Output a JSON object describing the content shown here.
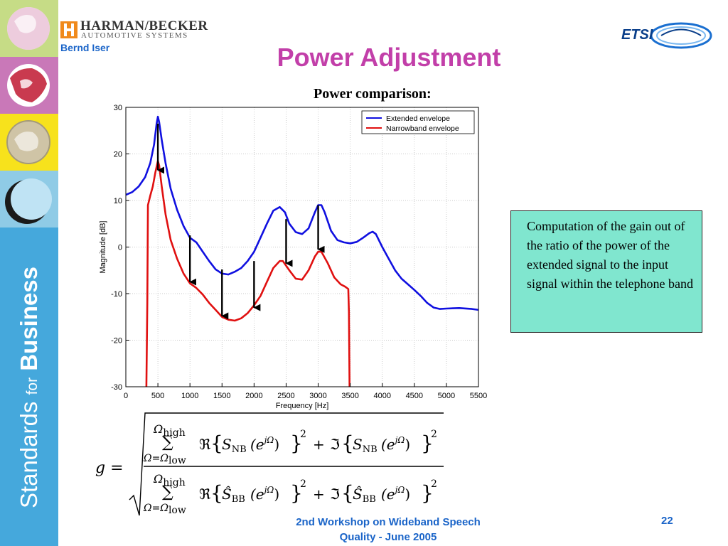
{
  "header": {
    "logo_main": "HARMAN/BECKER",
    "logo_sub": "AUTOMOTIVE SYSTEMS",
    "author": "Bernd Iser",
    "etsi_logo": "ETSI"
  },
  "title": "Power Adjustment",
  "sidebar": {
    "tagline_1": "Standards",
    "tagline_2": "for",
    "tagline_3": "Business"
  },
  "chart_caption": "Power comparison:",
  "chart_data": {
    "type": "line",
    "title": "",
    "xlabel": "Frequency [Hz]",
    "ylabel": "Magnitude [dB]",
    "xlim": [
      0,
      5500
    ],
    "ylim": [
      -30,
      30
    ],
    "x_ticks": [
      0,
      500,
      1000,
      1500,
      2000,
      2500,
      3000,
      3500,
      4000,
      4500,
      5000,
      5500
    ],
    "y_ticks": [
      -30,
      -20,
      -10,
      0,
      10,
      20,
      30
    ],
    "grid": true,
    "legend_position": "top-right",
    "series": [
      {
        "name": "Extended envelope",
        "color": "#1010e0",
        "points": [
          [
            0,
            11.2
          ],
          [
            100,
            11.8
          ],
          [
            200,
            13
          ],
          [
            300,
            15
          ],
          [
            380,
            18
          ],
          [
            440,
            22
          ],
          [
            480,
            26.5
          ],
          [
            500,
            28
          ],
          [
            520,
            26.8
          ],
          [
            560,
            23
          ],
          [
            620,
            18
          ],
          [
            700,
            12.5
          ],
          [
            800,
            8
          ],
          [
            900,
            4.5
          ],
          [
            1000,
            2
          ],
          [
            1100,
            1
          ],
          [
            1200,
            -1
          ],
          [
            1300,
            -3
          ],
          [
            1400,
            -4.8
          ],
          [
            1500,
            -5.7
          ],
          [
            1600,
            -5.9
          ],
          [
            1700,
            -5.3
          ],
          [
            1800,
            -4.5
          ],
          [
            1900,
            -3
          ],
          [
            2000,
            -1
          ],
          [
            2100,
            2
          ],
          [
            2200,
            5
          ],
          [
            2300,
            7.8
          ],
          [
            2400,
            8.6
          ],
          [
            2480,
            7.5
          ],
          [
            2550,
            5
          ],
          [
            2650,
            3.2
          ],
          [
            2750,
            2.8
          ],
          [
            2850,
            4
          ],
          [
            2950,
            7.5
          ],
          [
            3000,
            9
          ],
          [
            3050,
            9
          ],
          [
            3100,
            7.5
          ],
          [
            3200,
            3.5
          ],
          [
            3300,
            1.5
          ],
          [
            3400,
            1
          ],
          [
            3500,
            0.8
          ],
          [
            3600,
            1.1
          ],
          [
            3700,
            2
          ],
          [
            3800,
            3
          ],
          [
            3850,
            3.3
          ],
          [
            3900,
            2.8
          ],
          [
            4000,
            0
          ],
          [
            4100,
            -2.5
          ],
          [
            4200,
            -5
          ],
          [
            4300,
            -6.8
          ],
          [
            4400,
            -8
          ],
          [
            4500,
            -9.2
          ],
          [
            4600,
            -10.5
          ],
          [
            4700,
            -12
          ],
          [
            4800,
            -13
          ],
          [
            4900,
            -13.3
          ],
          [
            5000,
            -13.2
          ],
          [
            5200,
            -13.1
          ],
          [
            5400,
            -13.3
          ],
          [
            5500,
            -13.5
          ]
        ]
      },
      {
        "name": "Narrowband envelope",
        "color": "#e01010",
        "points": [
          [
            320,
            -30
          ],
          [
            335,
            -12
          ],
          [
            345,
            9
          ],
          [
            380,
            11
          ],
          [
            420,
            13
          ],
          [
            460,
            16
          ],
          [
            500,
            18.5
          ],
          [
            520,
            17.5
          ],
          [
            560,
            13
          ],
          [
            620,
            7
          ],
          [
            700,
            1.5
          ],
          [
            800,
            -2.5
          ],
          [
            900,
            -5.7
          ],
          [
            1000,
            -7.8
          ],
          [
            1100,
            -8.8
          ],
          [
            1200,
            -10.2
          ],
          [
            1300,
            -12
          ],
          [
            1400,
            -13.5
          ],
          [
            1500,
            -15
          ],
          [
            1600,
            -15.6
          ],
          [
            1700,
            -15.8
          ],
          [
            1800,
            -15.3
          ],
          [
            1900,
            -14.2
          ],
          [
            2000,
            -12.5
          ],
          [
            2100,
            -10.5
          ],
          [
            2200,
            -7.5
          ],
          [
            2300,
            -4.5
          ],
          [
            2400,
            -3
          ],
          [
            2450,
            -3
          ],
          [
            2550,
            -5
          ],
          [
            2650,
            -6.8
          ],
          [
            2750,
            -7
          ],
          [
            2850,
            -5
          ],
          [
            2950,
            -2
          ],
          [
            3000,
            -1
          ],
          [
            3050,
            -1
          ],
          [
            3150,
            -3.5
          ],
          [
            3250,
            -6.5
          ],
          [
            3350,
            -8
          ],
          [
            3420,
            -8.5
          ],
          [
            3470,
            -9
          ],
          [
            3480,
            -14
          ],
          [
            3490,
            -30
          ]
        ]
      }
    ],
    "arrows": [
      {
        "x": 500,
        "y_from": 26.5,
        "y_to": 16.5
      },
      {
        "x": 1000,
        "y_from": 2.5,
        "y_to": -7.5
      },
      {
        "x": 1500,
        "y_from": -4.8,
        "y_to": -14.8
      },
      {
        "x": 2000,
        "y_from": -3.0,
        "y_to": -13.0
      },
      {
        "x": 2500,
        "y_from": 6.0,
        "y_to": -3.5
      },
      {
        "x": 3000,
        "y_from": 9.0,
        "y_to": -0.5
      }
    ]
  },
  "note": "Computation of the gain out of the ratio of the power of the extended signal to the input signal within the telephone band",
  "formula": {
    "lhs": "g =",
    "upper_limit": "Ω",
    "upper_limit_sub": "high",
    "lower_limit": "Ω=Ω",
    "lower_limit_sub": "low",
    "re": "ℜ",
    "im": "ℑ",
    "num_symbol": "S",
    "num_sub": "NB",
    "den_symbol": "Ŝ",
    "den_sub": "BB",
    "arg": "(e",
    "arg_exp": "jΩ",
    "arg_close": ")",
    "square": "2",
    "plus": "+"
  },
  "footer": {
    "line1": "2nd Workshop on Wideband Speech",
    "line2": "Quality - June 2005",
    "page": "22"
  }
}
